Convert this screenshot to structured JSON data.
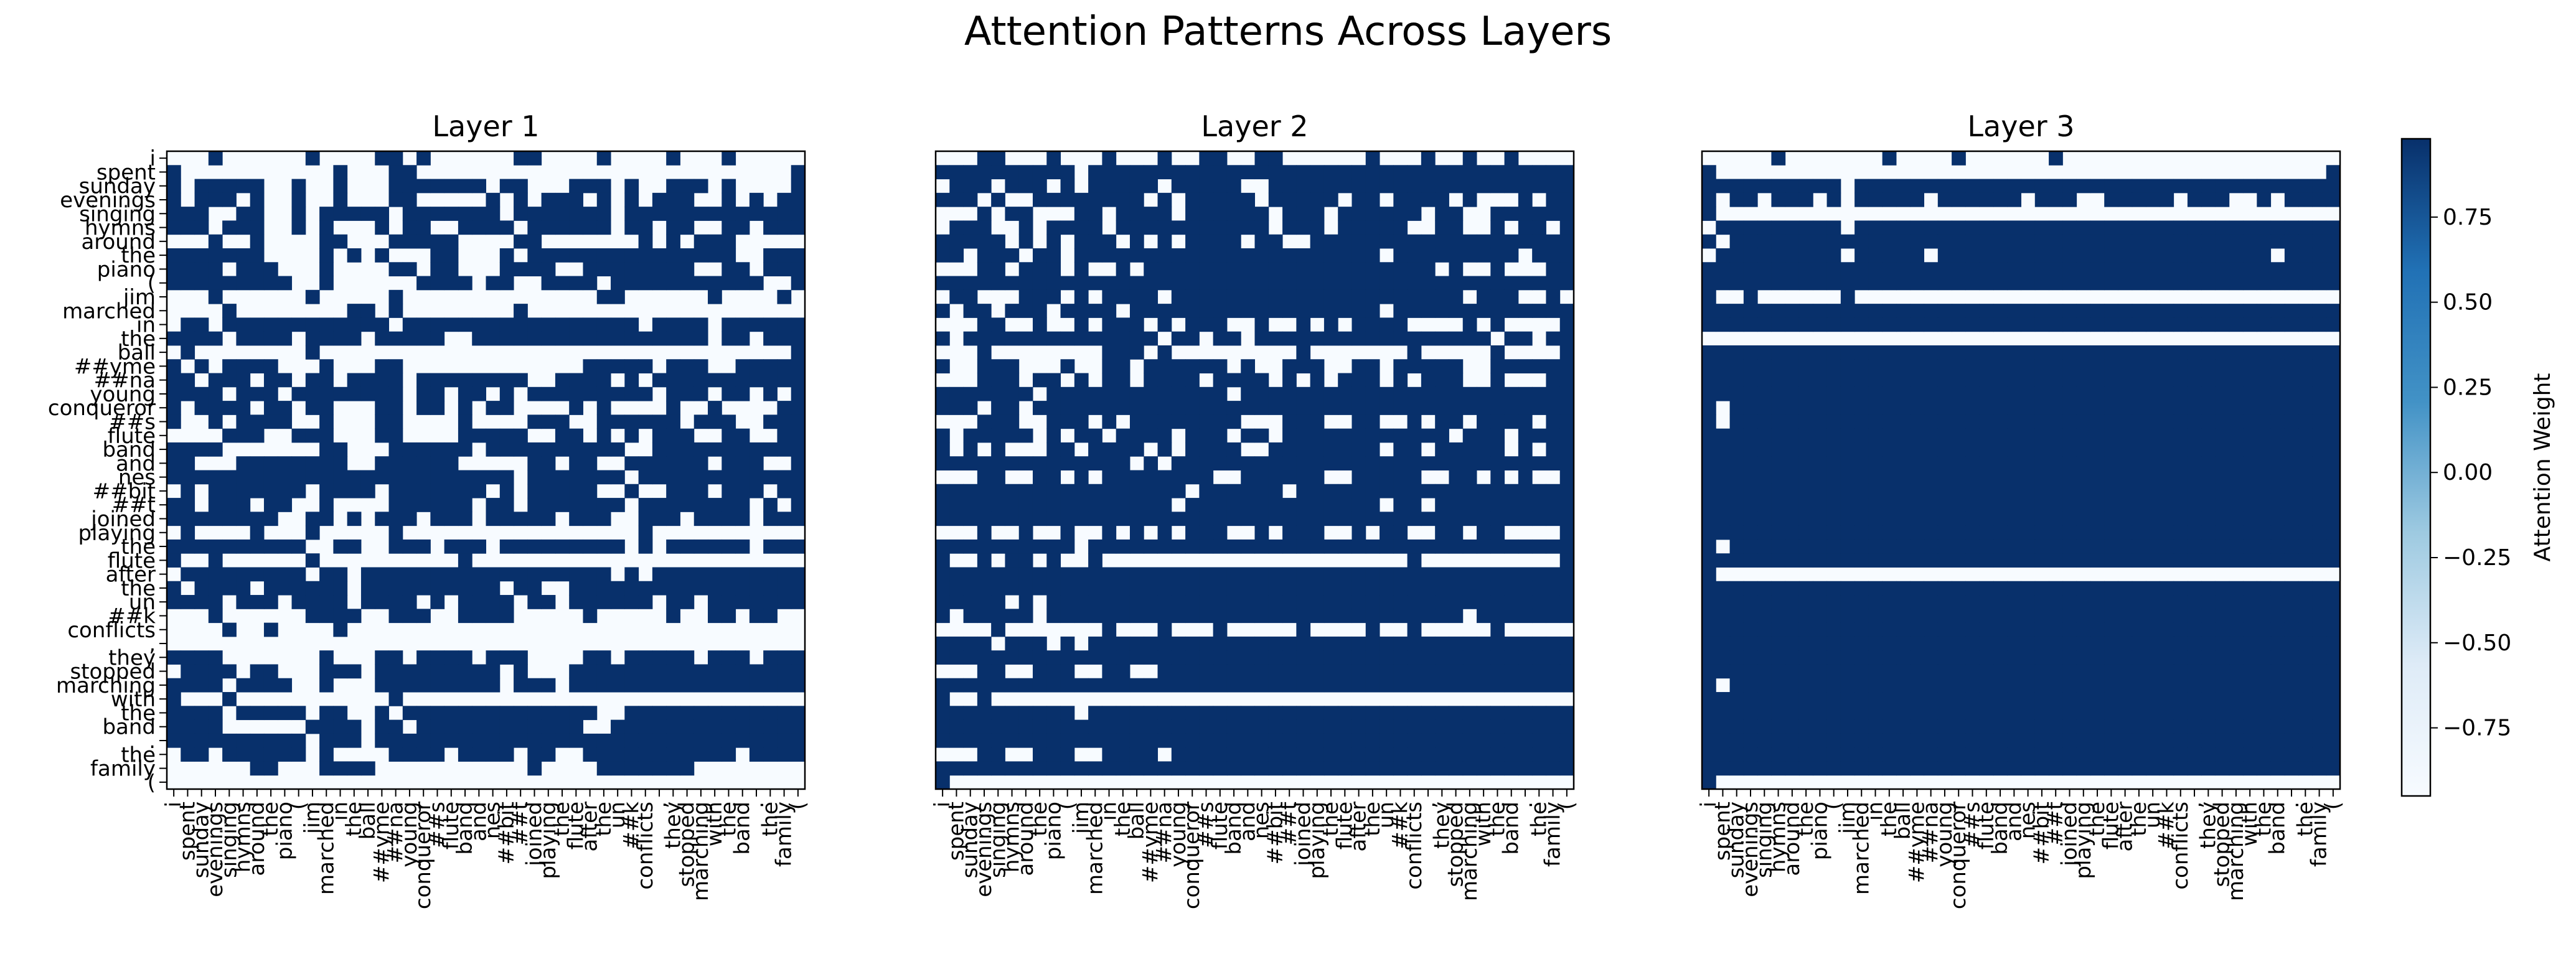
{
  "figure": {
    "title": "Attention Patterns Across Layers"
  },
  "chart_data": {
    "type": "heatmap",
    "tokens": [
      "i",
      "spent",
      "sunday",
      "evenings",
      "singing",
      "hymns",
      "around",
      "the",
      "piano",
      "(",
      "jim",
      "marched",
      "in",
      "the",
      "ball",
      "##yme",
      "##na",
      "young",
      "conqueror",
      "##s",
      "flute",
      "band",
      "and",
      "nes",
      "##bit",
      "##t",
      "joined",
      "playing",
      "the",
      "flute",
      "after",
      "the",
      "un",
      "##k",
      "conflicts",
      ",",
      "they",
      "stopped",
      "marching",
      "with",
      "the",
      "band",
      ".",
      "the",
      "family",
      "("
    ],
    "panels": [
      {
        "title": "Layer 1",
        "matrix": [
          "0001000000100001101000000110000100001000100000",
          "1000000000001000110000000000000000000000000001",
          "1011111001001000111111101100011101001110100001",
          "1011101001001000110000010101110101011100101011",
          "1110011001011111011111110111111101111111111111",
          "1110111001010001011001111011111101101100110111",
          "0001001000011000111110000110000000101011100000",
          "1111111000010101000110001011111111111111100111",
          "1111011100010000110110001111001111111100110111",
          "1111111110010000001111011001111011111111111001",
          "0001000000100000100000000000000110000001000010",
          "0000100000000110100000000100000000000000000000",
          "0110111111111111011111111111111111011110111111",
          "1111011110111101111100111111111111111110110111",
          "0100000000100000000000000000000000000000000001",
          "1010111100010001100000000000001111101110011111",
          "1101110110110111101111111100111101011111111111",
          "1111011101111111101101101011111111101110110101",
          "1011110110110001101101011000010100001001000011",
          "1001011110010001100001000011100111111011100111",
          "0000111001110001100001111100110101011100110011",
          "1111000000011000111111011111111110011111111111",
          "1100011111111001111110000011011001111110111001",
          "1111111111111111111111111011111110111111111111",
          "0101111111011110111111101011111001001110111011",
          "1101110110010000111111011011111110111111110101",
          "1111111100110101110111011111011100111011110111",
          "0100001000100000100000000000000000100000000000",
          "1111111111001100111011101111111110101111110111",
          "1001000000100000000001000000000000000000000000",
          "0111111111011011111111111111111101011111111111",
          "1011110111111011111111110110011111111111111111",
          "1111011101111011110101111011011111101101111111",
          "0001000000111100111001111000001000001001101100",
          "0000100100001000000000000000000000000000000000",
          "0000000000000000000000000000000000000000000000",
          "1111000000010001101111011100001101111101110111",
          "0111101100011101111111110100011111111111111111",
          "1111011110010001111111110111011111111111111111",
          "1000100000000000100000000000000000000000000000",
          "1111011111011001011111111111111001111111111111",
          "1111000000111101101111111111110011111111111111",
          "1111111111011101111111111111111111111111111111",
          "0110111111010000111101111011001111111111101111",
          "0000001100011110000000000010000111111100000000",
          "0000000000000000000000000000000000000000000000"
        ]
      },
      {
        "title": "Layer 2",
        "matrix": [
          "0001100010001000100110011000000100010010010000",
          "1111111111011111111111111111111111111111111111",
          "0111011101011111011111001111111111111111111111",
          "1110100111111110101111101111101101111010001011",
          "0001011000110111101111110111011111101100111111",
          "0111001011110111111111110111011111001100101101",
          "1111101010111010101111011001111111111111111111",
          "1101110110111111111111111111111101111111110111",
          "0001101110100101111111111111111111110100100011",
          "1111111111111111111111111111111111111111111111",
          "0110001110101111011111111111111111111101110010",
          "1011011101111011111111111111111101111111111111",
          "0001100100101110101110010010101111000010100001",
          "1011111111111111011011011111111111111111011011",
          "0001000000001110100000000010000000100000100001",
          "1001110001001101111110100111001101111100111111",
          "0001110110101101111011110101011101011100100011",
          "1111111011111111111110111111111111111111111111",
          "1110110111111111111111111111111111111111111111",
          "0001110011101011111111000111001100101101111011",
          "1011111010110111101110110111111111111011101111",
          "1010100011011110101111001111111101101111101011",
          "1111111111111101011111111111111111111111111111",
          "0001100110101111111100111111001111100110101001",
          "1111111111111111110111111011111111111111111111",
          "1111111111111111101111111111111101101111111111",
          "1111111111111111111111111111111111111111111111",
          "0001001001001010101110010111001011001101100001",
          "1111111111011111111111111111111111111111111111",
          "1001011010010000000000000000000000100000000001",
          "1111111111111111111111111111111111111111111111",
          "1111111111111111111111111111111111111111111111",
          "1111101011111111111111111111111111111111111111",
          "1011111011111111111111111111111111111101111111",
          "0000100000001000100010000010000100100000100000",
          "1111011101011111111111111111111111111111111111",
          "1111111111111111111111111111111111111111111111",
          "0001100111001100111111111111111111111111111111",
          "1111111111111111111111111111111111111111111111",
          "1001000000000000000000000000000000000000000000",
          "1111111111011111111111111111111111111111111111",
          "1111111111111111111111111111111111111111111111",
          "1111111111111111111111111111111111111111111111",
          "0001100111001111011111111111111111111111111111",
          "1111111111111111111111111111111111111111111111",
          "1000000000000000000000000000000000000000000000"
        ]
      },
      {
        "title": "Layer 3",
        "matrix": [
          "0000010000000100001000000100000000000000000000",
          "1000000000000000000000000000000000000000000001",
          "1111111111011111111111111111111111111111111111",
          "1011011101011111011111101110011111011100101111",
          "1000000000000000000000000000000000000000000000",
          "0111111111011111111111111111111111111111111111",
          "1011111111111111111111111111111111111111111111",
          "0111111111011111011111111111111111111111101111",
          "1111111111111111111111111111111111111111111111",
          "1111111111111111111111111111111111111111111111",
          "1001000000100000000000000000000000000000000000",
          "1111111111111111111111111111111111111111111111",
          "1111111111111111111111111111111111111111111111",
          "0000000000000000000000000000000000000000000000",
          "1111111111111111111111111111111111111111111111",
          "1111111111111111111111111111111111111111111111",
          "1111111111111111111111111111111111111111111111",
          "1111111111111111111111111111111111111111111111",
          "1011111111111111111111111111111111111111111111",
          "1011111111111111111111111111111111111111111111",
          "1111111111111111111111111111111111111111111111",
          "1111111111111111111111111111111111111111111111",
          "1111111111111111111111111111111111111111111111",
          "1111111111111111111111111111111111111111111111",
          "1111111111111111111111111111111111111111111111",
          "1111111111111111111111111111111111111111111111",
          "1111111111111111111111111111111111111111111111",
          "1111111111111111111111111111111111111111111111",
          "1011111111111111111111111111111111111111111111",
          "1111111111111111111111111111111111111111111111",
          "1000000000000000000000000000000000000000000000",
          "1111111111111111111111111111111111111111111111",
          "1111111111111111111111111111111111111111111111",
          "1111111111111111111111111111111111111111111111",
          "1111111111111111111111111111111111111111111111",
          "1111111111111111111111111111111111111111111111",
          "1111111111111111111111111111111111111111111111",
          "1111111111111111111111111111111111111111111111",
          "1011111111111111111111111111111111111111111111",
          "1111111111111111111111111111111111111111111111",
          "1111111111111111111111111111111111111111111111",
          "1111111111111111111111111111111111111111111111",
          "1111111111111111111111111111111111111111111111",
          "1111111111111111111111111111111111111111111111",
          "1111111111111111111111111111111111111111111111",
          "1000000000000000000000000000000000000000000000"
        ]
      }
    ],
    "colorbar": {
      "label": "Attention Weight",
      "range": [
        -0.95,
        0.98
      ],
      "ticks": [
        0.75,
        0.5,
        0.25,
        0.0,
        -0.25,
        -0.5,
        -0.75
      ],
      "tick_labels": [
        "0.75",
        "0.50",
        "0.25",
        "0.00",
        "−0.25",
        "−0.50",
        "−0.75"
      ]
    },
    "colors": {
      "high": "#08306b",
      "mid": "#6baed6",
      "low": "#f7fbff"
    }
  }
}
